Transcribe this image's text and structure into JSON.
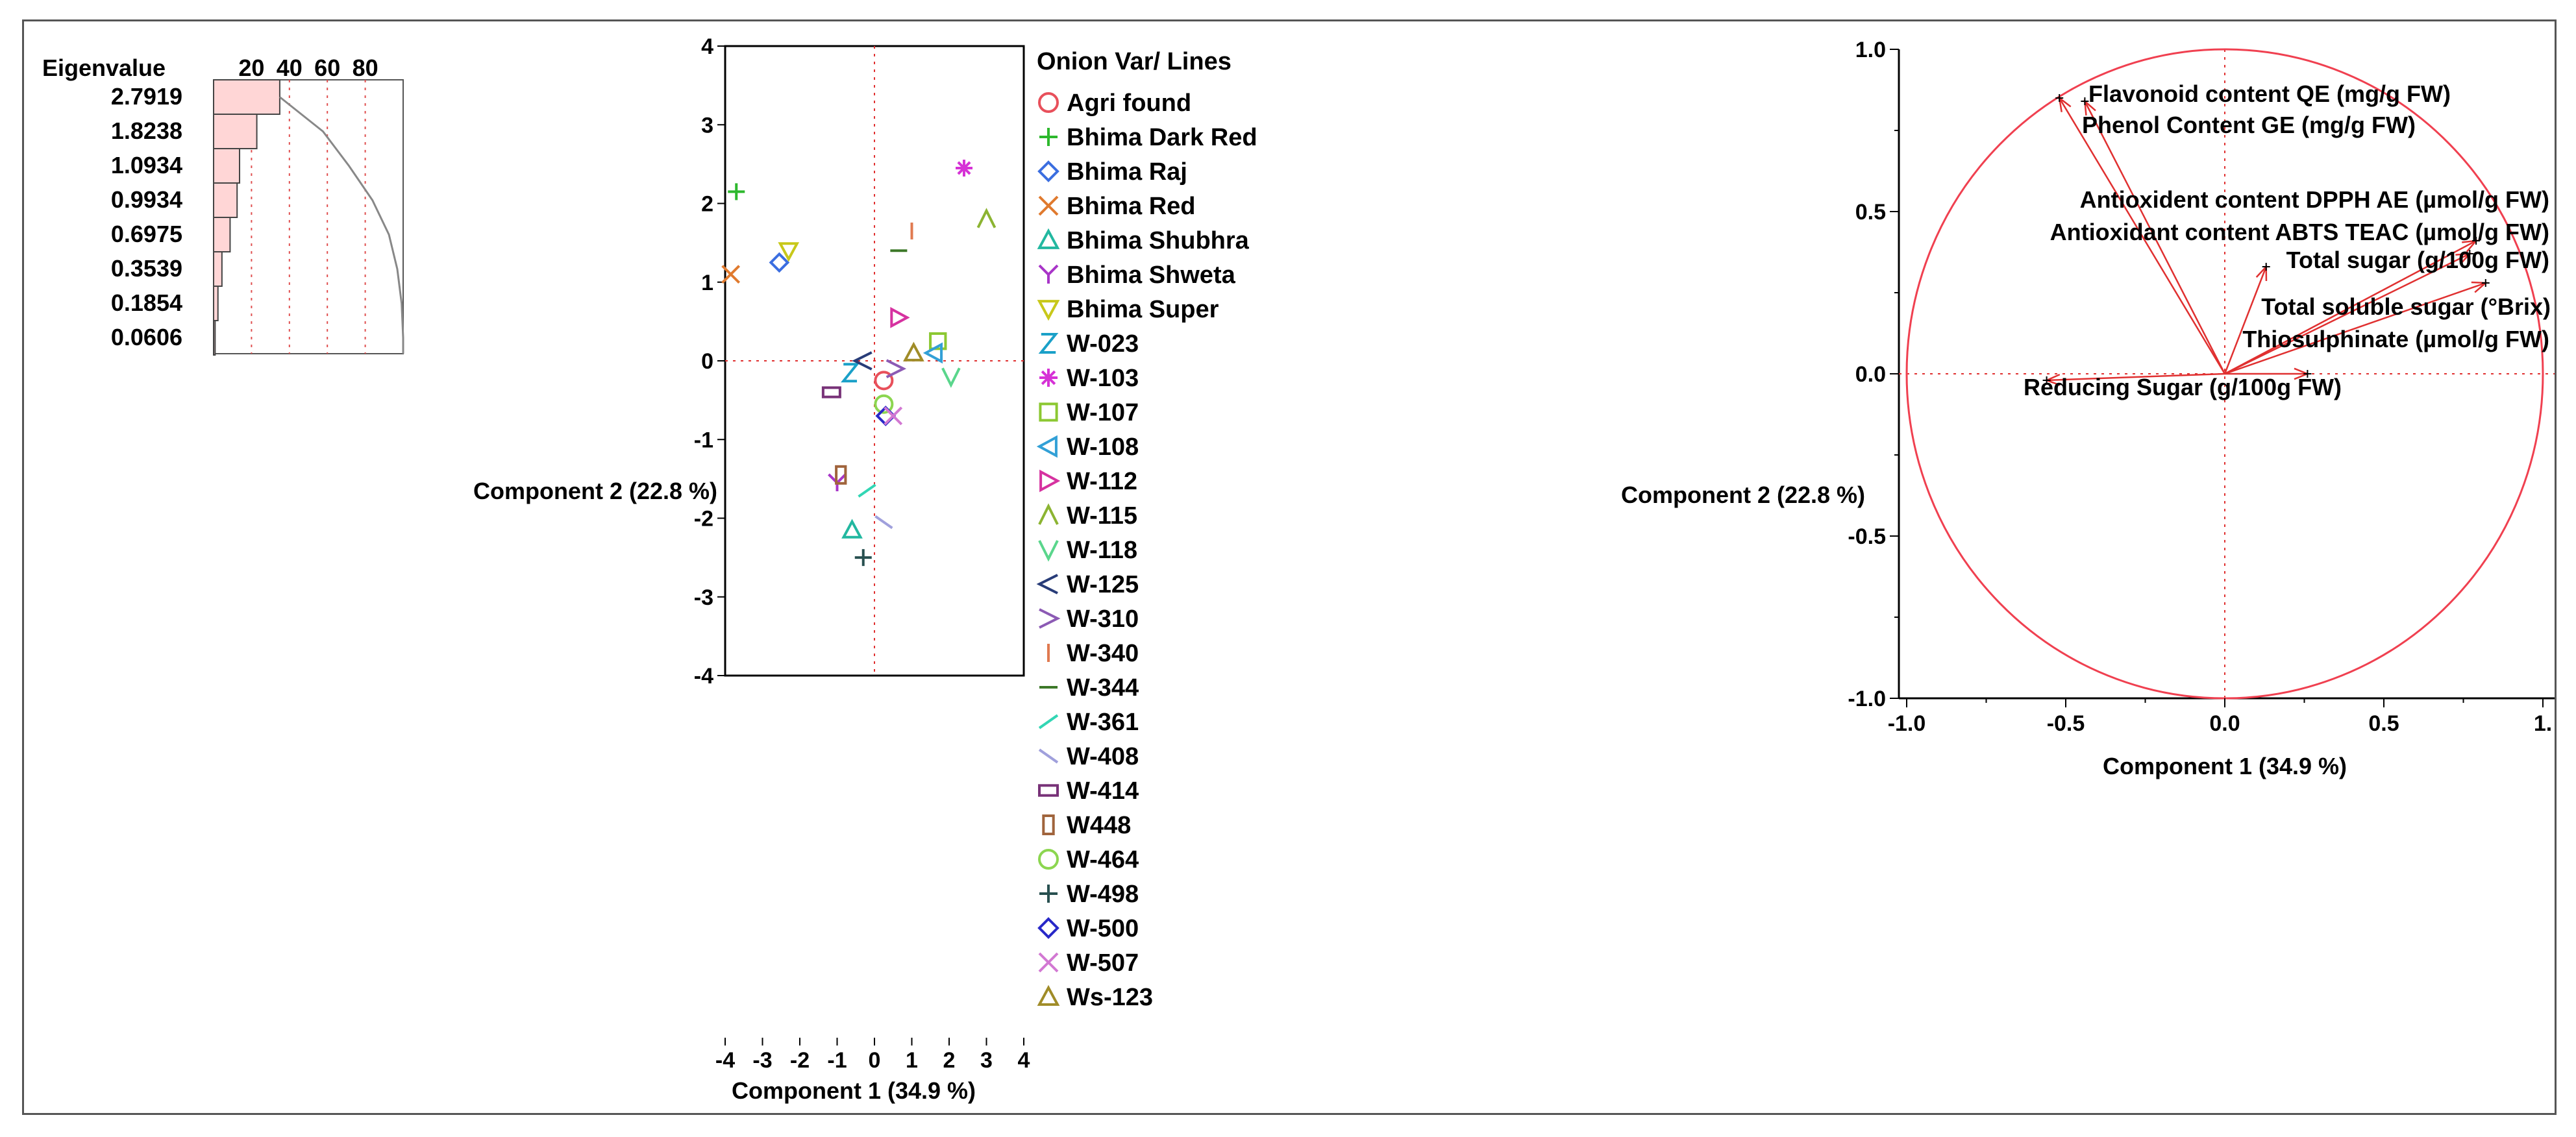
{
  "chart_data": [
    {
      "type": "bar",
      "name": "eigenvalues",
      "header": "Eigenvalue",
      "percent_ticks": [
        20,
        40,
        60,
        80
      ],
      "values": [
        2.7919,
        1.8238,
        1.0934,
        0.9934,
        0.6975,
        0.3539,
        0.1854,
        0.0606
      ],
      "value_labels": [
        "2.7919",
        "1.8238",
        "1.0934",
        "0.9934",
        "0.6975",
        "0.3539",
        "0.1854",
        "0.0606"
      ],
      "percent": [
        34.9,
        22.8,
        13.7,
        12.4,
        8.7,
        4.4,
        2.3,
        0.8
      ],
      "cumulative_percent": [
        34.9,
        57.7,
        71.4,
        83.8,
        92.5,
        96.9,
        99.2,
        100
      ],
      "colors": {
        "bar": "#ffd6d6",
        "curve": "#888888",
        "grid": "#e05050"
      }
    },
    {
      "type": "scatter",
      "name": "score plot",
      "xlabel": "Component 1  (34.9 %)",
      "ylabel": "Component 2  (22.8 %)",
      "xlim": [
        -4,
        4
      ],
      "ylim": [
        -4,
        4
      ],
      "xticks": [
        "-4",
        "-3",
        "-2",
        "-1",
        "0",
        "1",
        "2",
        "3",
        "4"
      ],
      "yticks": [
        "4",
        "3",
        "2",
        "1",
        "0",
        "-1",
        "-2",
        "-3",
        "-4"
      ],
      "legend_title": "Onion Var/ Lines",
      "points": [
        {
          "label": "Agri found",
          "x": 0.25,
          "y": -0.25,
          "marker": "circle",
          "color": "#e8505b"
        },
        {
          "label": "Bhima Dark Red",
          "x": -3.7,
          "y": 2.15,
          "marker": "plus",
          "color": "#2db82d"
        },
        {
          "label": "Bhima Raj",
          "x": -2.55,
          "y": 1.25,
          "marker": "diamond",
          "color": "#3b6ee0"
        },
        {
          "label": "Bhima Red",
          "x": -3.85,
          "y": 1.1,
          "marker": "x",
          "color": "#e07a2e"
        },
        {
          "label": "Bhima Shubhra",
          "x": -0.6,
          "y": -2.15,
          "marker": "triangle",
          "color": "#22b8a0"
        },
        {
          "label": "Bhima Shweta",
          "x": -1.0,
          "y": -1.55,
          "marker": "y",
          "color": "#a835c8"
        },
        {
          "label": "Bhima Super",
          "x": -2.3,
          "y": 1.4,
          "marker": "tridown",
          "color": "#c8c81a"
        },
        {
          "label": "W-023",
          "x": -0.65,
          "y": -0.15,
          "marker": "z",
          "color": "#1aa0c8"
        },
        {
          "label": "W-103",
          "x": 2.4,
          "y": 2.45,
          "marker": "star",
          "color": "#d632d6"
        },
        {
          "label": "W-107",
          "x": 1.7,
          "y": 0.25,
          "marker": "square",
          "color": "#8cc832"
        },
        {
          "label": "W-108",
          "x": 1.6,
          "y": 0.1,
          "marker": "triangle-left",
          "color": "#32a0d6"
        },
        {
          "label": "W-112",
          "x": 0.65,
          "y": 0.55,
          "marker": "triangle-right",
          "color": "#d632a0"
        },
        {
          "label": "W-115",
          "x": 3.0,
          "y": 1.8,
          "marker": "caret",
          "color": "#8cb432"
        },
        {
          "label": "W-118",
          "x": 2.05,
          "y": -0.2,
          "marker": "v",
          "color": "#5ad68c"
        },
        {
          "label": "W-125",
          "x": -0.3,
          "y": 0.0,
          "marker": "lt",
          "color": "#283c78"
        },
        {
          "label": "W-310",
          "x": 0.55,
          "y": -0.1,
          "marker": "gt",
          "color": "#8c5ab4"
        },
        {
          "label": "W-340",
          "x": 1.0,
          "y": 1.65,
          "marker": "vline",
          "color": "#e07a50"
        },
        {
          "label": "W-344",
          "x": 0.65,
          "y": 1.4,
          "marker": "hline",
          "color": "#3c7828"
        },
        {
          "label": "W-361",
          "x": -0.2,
          "y": -1.65,
          "marker": "slash",
          "color": "#32d6b4"
        },
        {
          "label": "W-408",
          "x": 0.25,
          "y": -2.05,
          "marker": "backslash",
          "color": "#a0a0dc"
        },
        {
          "label": "W-414",
          "x": -1.15,
          "y": -0.4,
          "marker": "rect",
          "color": "#783278"
        },
        {
          "label": "W448",
          "x": -0.9,
          "y": -1.45,
          "marker": "tallrect",
          "color": "#a0643c"
        },
        {
          "label": "W-464",
          "x": 0.25,
          "y": -0.55,
          "marker": "circle",
          "color": "#8cd650"
        },
        {
          "label": "W-498",
          "x": -0.3,
          "y": -2.5,
          "marker": "plus",
          "color": "#285050"
        },
        {
          "label": "W-500",
          "x": 0.3,
          "y": -0.7,
          "marker": "diamond",
          "color": "#2828c8"
        },
        {
          "label": "W-507",
          "x": 0.5,
          "y": -0.7,
          "marker": "x",
          "color": "#d278d2"
        },
        {
          "label": "Ws-123",
          "x": 1.05,
          "y": 0.1,
          "marker": "triangle",
          "color": "#a08c28"
        }
      ],
      "colors": {
        "refline": "#e03030",
        "frame": "#000000"
      }
    },
    {
      "type": "scatter",
      "name": "loading plot",
      "xlabel": "Component 1  (34.9 %)",
      "ylabel": "Component 2  (22.8 %)",
      "xlim": [
        -1,
        1
      ],
      "ylim": [
        -1,
        1
      ],
      "xticks": [
        "-1.0",
        "-0.5",
        "0.0",
        "0.5",
        "1."
      ],
      "yticks": [
        "1.0",
        "0.5",
        "0.0",
        "-0.5",
        "-1.0"
      ],
      "vectors": [
        {
          "label": "Flavonoid content QE (mg/g FW)",
          "x": -0.44,
          "y": 0.84
        },
        {
          "label": "Phenol Content GE (mg/g FW)",
          "x": -0.52,
          "y": 0.85
        },
        {
          "label": "Antioxident content DPPH AE (µmol/g FW)",
          "x": 0.79,
          "y": 0.41
        },
        {
          "label": "Antioxidant content ABTS TEAC (µmol/g FW)",
          "x": 0.77,
          "y": 0.37
        },
        {
          "label": "Total sugar (g/100g FW)",
          "x": 0.13,
          "y": 0.33
        },
        {
          "label": "Total soluble sugar (°Brix)",
          "x": 0.82,
          "y": 0.28
        },
        {
          "label": "Thiosulphinate (µmol/g FW)",
          "x": 0.26,
          "y": 0.0
        },
        {
          "label": "Reducing Sugar (g/100g FW)",
          "x": -0.56,
          "y": -0.02
        }
      ],
      "colors": {
        "circle": "#f04050",
        "vector": "#e03030"
      }
    }
  ]
}
